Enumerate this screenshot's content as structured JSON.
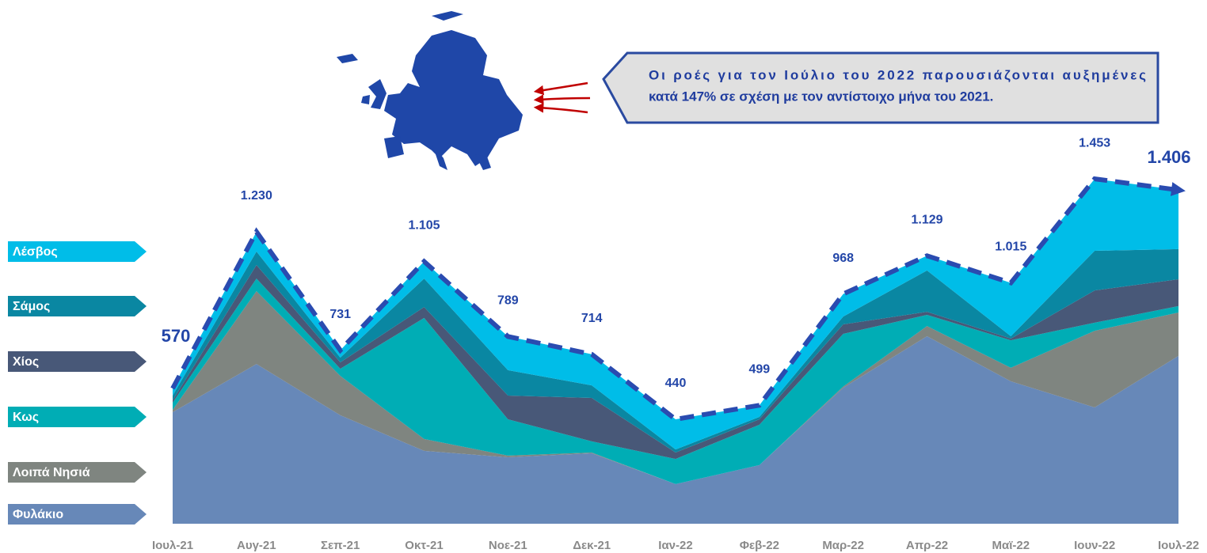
{
  "chart_data": {
    "type": "stacked_area",
    "categories": [
      "Ιουλ-21",
      "Αυγ-21",
      "Σεπ-21",
      "Οκτ-21",
      "Νοε-21",
      "Δεκ-21",
      "Ιαν-22",
      "Φεβ-22",
      "Μαρ-22",
      "Απρ-22",
      "Μαϊ-22",
      "Ιουν-22",
      "Ιουλ-22"
    ],
    "series": [
      {
        "name": "Φυλάκιο",
        "color": "#6788b8",
        "values": [
          470,
          673,
          457,
          307,
          280,
          297,
          167,
          247,
          573,
          790,
          600,
          490,
          707
        ]
      },
      {
        "name": "Λοιπά Νησιά",
        "color": "#7f8580",
        "values": [
          10,
          307,
          166,
          50,
          7,
          3,
          0,
          0,
          5,
          43,
          57,
          323,
          183
        ]
      },
      {
        "name": "Κως",
        "color": "#00adb5",
        "values": [
          30,
          53,
          30,
          510,
          153,
          47,
          106,
          170,
          222,
          47,
          116,
          34,
          27
        ]
      },
      {
        "name": "Χίος",
        "color": "#485878",
        "values": [
          10,
          57,
          27,
          46,
          100,
          183,
          27,
          23,
          40,
          13,
          7,
          136,
          113
        ]
      },
      {
        "name": "Σάμος",
        "color": "#0a87a2",
        "values": [
          20,
          57,
          20,
          120,
          107,
          53,
          13,
          10,
          33,
          174,
          10,
          167,
          127
        ]
      },
      {
        "name": "Λέσβος",
        "color": "#00bde8",
        "values": [
          30,
          83,
          31,
          72,
          142,
          131,
          127,
          49,
          95,
          62,
          225,
          303,
          249
        ]
      }
    ],
    "totals": [
      570,
      1230,
      731,
      1105,
      789,
      714,
      440,
      499,
      968,
      1129,
      1015,
      1453,
      1406
    ],
    "value_labels": [
      "570",
      "1.230",
      "731",
      "1.105",
      "789",
      "714",
      "440",
      "499",
      "968",
      "1.129",
      "1.015",
      "1.453",
      "1.406"
    ],
    "total_color": "#2a4bb0",
    "annotation": [
      "Οι ροές για τον Ιούλιο του 2022 παρουσιάζονται αυξημένες",
      "κατά 147% σε σχέση με τον αντίστοιχο μήνα του 2021."
    ]
  }
}
